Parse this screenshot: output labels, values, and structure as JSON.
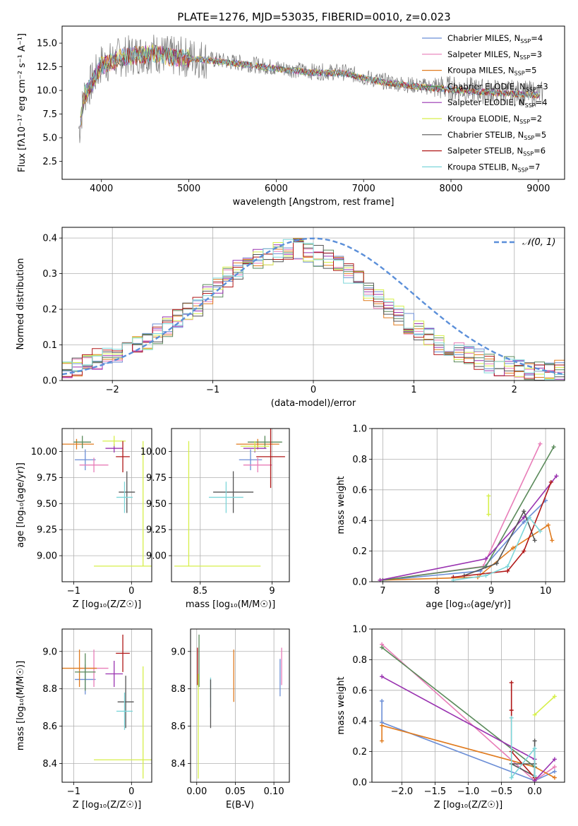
{
  "figure_title": "PLATE=1276, MJD=53035, FIBERID=0010, z=0.023",
  "colors": {
    "chabrier_miles": "#6b8ed6",
    "salpeter_miles": "#e87db8",
    "kroupa_miles": "#e07b1f",
    "chabrier_elodie": "#5a8a5a",
    "salpeter_elodie": "#9932b0",
    "kroupa_elodie": "#d6ef4a",
    "chabrier_stelib": "#555555",
    "salpeter_stelib": "#b01818",
    "kroupa_stelib": "#7dd6d9",
    "normal_curve": "#5b8fd9",
    "grid": "#b0b0b0"
  },
  "chart_data": [
    {
      "id": "spectrum",
      "type": "line",
      "xlabel": "wavelength [Angstrom, rest frame]",
      "ylabel": "Flux [fλ10⁻¹⁷ erg cm⁻² s⁻¹ A⁻¹]",
      "xlim": [
        3550,
        9300
      ],
      "ylim": [
        0.6,
        16.8
      ],
      "xticks": [
        4000,
        5000,
        6000,
        7000,
        8000,
        9000
      ],
      "yticks": [
        2.5,
        5.0,
        7.5,
        10.0,
        12.5,
        15.0
      ],
      "grid": false,
      "legend_position": "top-right",
      "legend": [
        {
          "label": "Chabrier MILES, N",
          "sub": "SSP",
          "suffix": "=4",
          "color": "#6b8ed6"
        },
        {
          "label": "Salpeter MILES, N",
          "sub": "SSP",
          "suffix": "=3",
          "color": "#e87db8"
        },
        {
          "label": "Kroupa MILES, N",
          "sub": "SSP",
          "suffix": "=5",
          "color": "#e07b1f"
        },
        {
          "label": "Chabrier ELODIE, N",
          "sub": "SSP",
          "suffix": "=3",
          "color": "#5a8a5a"
        },
        {
          "label": "Salpeter ELODIE, N",
          "sub": "SSP",
          "suffix": "=4",
          "color": "#9932b0"
        },
        {
          "label": "Kroupa ELODIE, N",
          "sub": "SSP",
          "suffix": "=2",
          "color": "#d6ef4a"
        },
        {
          "label": "Chabrier STELIB, N",
          "sub": "SSP",
          "suffix": "=5",
          "color": "#555555"
        },
        {
          "label": "Salpeter STELIB, N",
          "sub": "SSP",
          "suffix": "=6",
          "color": "#b01818"
        },
        {
          "label": "Kroupa STELIB, N",
          "sub": "SSP",
          "suffix": "=7",
          "color": "#7dd6d9"
        }
      ],
      "continuum": [
        [
          3750,
          6.0
        ],
        [
          3800,
          9.5
        ],
        [
          3900,
          11.0
        ],
        [
          4000,
          12.8
        ],
        [
          4100,
          13.0
        ],
        [
          4200,
          13.5
        ],
        [
          4400,
          13.8
        ],
        [
          4600,
          14.0
        ],
        [
          4800,
          13.6
        ],
        [
          5000,
          13.5
        ],
        [
          5200,
          13.3
        ],
        [
          5400,
          13.1
        ],
        [
          5600,
          12.9
        ],
        [
          6000,
          12.4
        ],
        [
          6400,
          12.0
        ],
        [
          6800,
          11.9
        ],
        [
          7000,
          11.4
        ],
        [
          7200,
          11.0
        ],
        [
          7600,
          10.5
        ],
        [
          8000,
          10.2
        ],
        [
          8400,
          9.9
        ],
        [
          8800,
          9.7
        ],
        [
          9050,
          9.6
        ]
      ]
    },
    {
      "id": "residuals",
      "type": "histogram",
      "xlabel": "(data-model)/error",
      "ylabel": "Normed distribution",
      "xlim": [
        -2.5,
        2.5
      ],
      "ylim": [
        0.0,
        0.43
      ],
      "xticks": [
        -2,
        -1,
        0,
        1,
        2
      ],
      "yticks": [
        0.0,
        0.1,
        0.2,
        0.3,
        0.4
      ],
      "grid": true,
      "bin_width": 0.1,
      "envelope": [
        0.03,
        0.04,
        0.05,
        0.06,
        0.07,
        0.08,
        0.09,
        0.1,
        0.11,
        0.13,
        0.15,
        0.17,
        0.19,
        0.21,
        0.24,
        0.26,
        0.29,
        0.31,
        0.33,
        0.34,
        0.35,
        0.36,
        0.37,
        0.37,
        0.36,
        0.35,
        0.34,
        0.32,
        0.3,
        0.28,
        0.25,
        0.23,
        0.2,
        0.18,
        0.16,
        0.14,
        0.12,
        0.1,
        0.09,
        0.08,
        0.07,
        0.06,
        0.05,
        0.04,
        0.04,
        0.03,
        0.03,
        0.03,
        0.03,
        0.03
      ],
      "legend": {
        "label": "𝒩(0, 1)",
        "position": "top-right"
      }
    },
    {
      "id": "age_vs_Z",
      "type": "errorbar",
      "xlabel": "Z [log₁₀(Z/Z☉)]",
      "ylabel": "age  [log₁₀(age/yr)]",
      "xlim": [
        -1.2,
        0.35
      ],
      "ylim": [
        8.75,
        10.22
      ],
      "xticks": [
        -1,
        0
      ],
      "yticks": [
        9.0,
        9.25,
        9.5,
        9.75,
        10.0
      ],
      "ytick_labels": [
        "9.00",
        "9.25",
        "9.50",
        "9.75",
        "10.00"
      ],
      "grid": true,
      "points": [
        {
          "x": -0.8,
          "y": 9.92,
          "xerr": 0.18,
          "yerr": 0.1,
          "color": "#6b8ed6"
        },
        {
          "x": -0.65,
          "y": 9.87,
          "xerr": 0.25,
          "yerr": 0.07,
          "color": "#e87db8"
        },
        {
          "x": -0.95,
          "y": 10.07,
          "xerr": 0.3,
          "yerr": 0.05,
          "color": "#e07b1f"
        },
        {
          "x": -0.85,
          "y": 10.09,
          "xerr": 0.15,
          "yerr": 0.06,
          "color": "#5a8a5a"
        },
        {
          "x": -0.3,
          "y": 10.03,
          "xerr": 0.15,
          "yerr": 0.04,
          "color": "#9932b0"
        },
        {
          "x": -0.3,
          "y": 10.1,
          "xerr": 0.2,
          "yerr": 0.05,
          "color": "#d6ef4a"
        },
        {
          "x": -0.08,
          "y": 9.61,
          "xerr": 0.14,
          "yerr": 0.2,
          "color": "#555555"
        },
        {
          "x": -0.15,
          "y": 9.95,
          "xerr": 0.12,
          "yerr": 0.15,
          "color": "#b01818"
        },
        {
          "x": -0.12,
          "y": 9.56,
          "xerr": 0.14,
          "yerr": 0.15,
          "color": "#7dd6d9"
        },
        {
          "x": -0.1,
          "y": 8.9,
          "xerr": 0.55,
          "yerr": 0.0,
          "color": "#d6ef4a"
        },
        {
          "x": 0.2,
          "y": 9.5,
          "xerr": 0.0,
          "yerr": 0.6,
          "color": "#d6ef4a"
        }
      ]
    },
    {
      "id": "age_vs_mass",
      "type": "errorbar",
      "xlabel": "mass [log₁₀(M/M☉)]",
      "ylabel": "",
      "xlim": [
        8.3,
        9.12
      ],
      "ylim": [
        8.75,
        10.22
      ],
      "xticks": [
        8.5,
        9.0
      ],
      "yticks": [
        9.0,
        9.25,
        9.5,
        9.75,
        10.0
      ],
      "ytick_labels": [
        "9.00",
        "9.25",
        "9.50",
        "9.75",
        "10.00"
      ],
      "grid": true,
      "points": [
        {
          "x": 8.85,
          "y": 9.92,
          "xerr": 0.08,
          "yerr": 0.1,
          "color": "#6b8ed6"
        },
        {
          "x": 8.9,
          "y": 9.87,
          "xerr": 0.1,
          "yerr": 0.07,
          "color": "#e87db8"
        },
        {
          "x": 8.9,
          "y": 10.07,
          "xerr": 0.15,
          "yerr": 0.05,
          "color": "#e07b1f"
        },
        {
          "x": 8.95,
          "y": 10.09,
          "xerr": 0.12,
          "yerr": 0.06,
          "color": "#5a8a5a"
        },
        {
          "x": 8.88,
          "y": 10.03,
          "xerr": 0.08,
          "yerr": 0.04,
          "color": "#9932b0"
        },
        {
          "x": 8.88,
          "y": 10.05,
          "xerr": 0.1,
          "yerr": 0.05,
          "color": "#d6ef4a"
        },
        {
          "x": 8.73,
          "y": 9.61,
          "xerr": 0.14,
          "yerr": 0.2,
          "color": "#555555"
        },
        {
          "x": 8.99,
          "y": 9.95,
          "xerr": 0.1,
          "yerr": 0.3,
          "color": "#b01818"
        },
        {
          "x": 8.68,
          "y": 9.56,
          "xerr": 0.12,
          "yerr": 0.15,
          "color": "#7dd6d9"
        },
        {
          "x": 8.62,
          "y": 8.9,
          "xerr": 0.3,
          "yerr": 0.0,
          "color": "#d6ef4a"
        },
        {
          "x": 8.42,
          "y": 9.5,
          "xerr": 0.0,
          "yerr": 0.6,
          "color": "#d6ef4a"
        }
      ]
    },
    {
      "id": "weight_vs_age",
      "type": "line",
      "xlabel": "age  [log₁₀(age/yr)]",
      "ylabel": "mass weight",
      "xlim": [
        6.8,
        10.35
      ],
      "ylim": [
        0.0,
        1.0
      ],
      "xticks": [
        7,
        8,
        9,
        10
      ],
      "yticks": [
        0.0,
        0.2,
        0.4,
        0.6,
        0.8,
        1.0
      ],
      "grid": true,
      "series": [
        {
          "color": "#6b8ed6",
          "points": [
            [
              7.0,
              0.01
            ],
            [
              8.8,
              0.07
            ],
            [
              9.6,
              0.39
            ],
            [
              10.0,
              0.53
            ]
          ]
        },
        {
          "color": "#e87db8",
          "points": [
            [
              7.0,
              0.01
            ],
            [
              8.85,
              0.1
            ],
            [
              9.9,
              0.9
            ]
          ]
        },
        {
          "color": "#e07b1f",
          "points": [
            [
              6.95,
              0.01
            ],
            [
              8.75,
              0.03
            ],
            [
              9.4,
              0.22
            ],
            [
              10.05,
              0.37
            ],
            [
              10.12,
              0.27
            ]
          ]
        },
        {
          "color": "#5a8a5a",
          "points": [
            [
              7.0,
              0.01
            ],
            [
              8.9,
              0.1
            ],
            [
              10.15,
              0.88
            ]
          ]
        },
        {
          "color": "#9932b0",
          "points": [
            [
              6.95,
              0.01
            ],
            [
              8.9,
              0.15
            ],
            [
              9.6,
              0.42
            ],
            [
              10.2,
              0.69
            ]
          ]
        },
        {
          "color": "#d6ef4a",
          "points": [
            [
              8.95,
              0.44
            ],
            [
              8.95,
              0.56
            ]
          ]
        },
        {
          "color": "#555555",
          "points": [
            [
              8.5,
              0.04
            ],
            [
              9.1,
              0.12
            ],
            [
              9.6,
              0.46
            ],
            [
              9.8,
              0.27
            ]
          ]
        },
        {
          "color": "#b01818",
          "points": [
            [
              8.3,
              0.03
            ],
            [
              9.3,
              0.07
            ],
            [
              9.6,
              0.2
            ],
            [
              10.1,
              0.65
            ]
          ]
        },
        {
          "color": "#7dd6d9",
          "points": [
            [
              8.3,
              0.01
            ],
            [
              8.9,
              0.04
            ],
            [
              9.3,
              0.1
            ],
            [
              9.7,
              0.42
            ],
            [
              9.9,
              0.33
            ]
          ]
        }
      ]
    },
    {
      "id": "mass_vs_Z",
      "type": "errorbar",
      "xlabel": "Z [log₁₀(Z/Z☉)]",
      "ylabel": "mass [log₁₀(M/M☉)]",
      "xlim": [
        -1.2,
        0.35
      ],
      "ylim": [
        8.3,
        9.12
      ],
      "xticks": [
        -1,
        0
      ],
      "yticks": [
        8.4,
        8.6,
        8.8,
        9.0
      ],
      "ytick_labels": [
        "8.4",
        "8.6",
        "8.8",
        "9.0"
      ],
      "grid": true,
      "points": [
        {
          "x": -0.8,
          "y": 8.85,
          "xerr": 0.18,
          "yerr": 0.08,
          "color": "#6b8ed6"
        },
        {
          "x": -0.65,
          "y": 8.91,
          "xerr": 0.25,
          "yerr": 0.1,
          "color": "#e87db8"
        },
        {
          "x": -0.9,
          "y": 8.91,
          "xerr": 0.3,
          "yerr": 0.1,
          "color": "#e07b1f"
        },
        {
          "x": -0.8,
          "y": 8.89,
          "xerr": 0.18,
          "yerr": 0.1,
          "color": "#5a8a5a"
        },
        {
          "x": -0.3,
          "y": 8.88,
          "xerr": 0.15,
          "yerr": 0.07,
          "color": "#9932b0"
        },
        {
          "x": -0.1,
          "y": 8.73,
          "xerr": 0.14,
          "yerr": 0.14,
          "color": "#555555"
        },
        {
          "x": -0.15,
          "y": 8.99,
          "xerr": 0.12,
          "yerr": 0.1,
          "color": "#b01818"
        },
        {
          "x": -0.12,
          "y": 8.68,
          "xerr": 0.14,
          "yerr": 0.1,
          "color": "#7dd6d9"
        },
        {
          "x": -0.1,
          "y": 8.42,
          "xerr": 0.55,
          "yerr": 0.0,
          "color": "#d6ef4a"
        },
        {
          "x": 0.2,
          "y": 8.62,
          "xerr": 0.0,
          "yerr": 0.3,
          "color": "#d6ef4a"
        }
      ]
    },
    {
      "id": "mass_vs_ebv",
      "type": "errorbar",
      "xlabel": "E(B-V)",
      "ylabel": "",
      "xlim": [
        -0.008,
        0.12
      ],
      "ylim": [
        8.3,
        9.12
      ],
      "xticks": [
        0.0,
        0.05,
        0.1
      ],
      "xtick_labels": [
        "0.00",
        "0.05",
        "0.10"
      ],
      "yticks": [
        8.4,
        8.6,
        8.8,
        9.0
      ],
      "ytick_labels": [
        "8.4",
        "8.6",
        "8.8",
        "9.0"
      ],
      "grid": true,
      "points": [
        {
          "x": 0.001,
          "y": 8.92,
          "xerr": 0,
          "yerr": 0.1,
          "color": "#b01818"
        },
        {
          "x": 0.003,
          "y": 8.95,
          "xerr": 0,
          "yerr": 0.14,
          "color": "#5a8a5a"
        },
        {
          "x": 0.002,
          "y": 8.6,
          "xerr": 0,
          "yerr": 0.28,
          "color": "#d6ef4a"
        },
        {
          "x": 0.018,
          "y": 8.78,
          "xerr": 0,
          "yerr": 0.08,
          "color": "#7dd6d9"
        },
        {
          "x": 0.018,
          "y": 8.72,
          "xerr": 0,
          "yerr": 0.13,
          "color": "#555555"
        },
        {
          "x": 0.048,
          "y": 8.87,
          "xerr": 0,
          "yerr": 0.14,
          "color": "#e07b1f"
        },
        {
          "x": 0.11,
          "y": 8.92,
          "xerr": 0,
          "yerr": 0.1,
          "color": "#e87db8"
        },
        {
          "x": 0.108,
          "y": 8.86,
          "xerr": 0,
          "yerr": 0.1,
          "color": "#6b8ed6"
        }
      ]
    },
    {
      "id": "weight_vs_Z",
      "type": "line",
      "xlabel": "Z [log₁₀(Z/Z☉)]",
      "ylabel": "mass weight",
      "xlim": [
        -2.45,
        0.45
      ],
      "ylim": [
        0.0,
        1.0
      ],
      "xticks": [
        -2.0,
        -1.5,
        -1.0,
        -0.5,
        0.0
      ],
      "xtick_labels": [
        "−2.0",
        "−1.5",
        "−1.0",
        "−0.5",
        "0.0"
      ],
      "yticks": [
        0.0,
        0.2,
        0.4,
        0.6,
        0.8,
        1.0
      ],
      "grid": true,
      "series": [
        {
          "color": "#6b8ed6",
          "points": [
            [
              -2.3,
              0.53
            ],
            [
              -2.3,
              0.39
            ],
            [
              0.0,
              0.01
            ],
            [
              0.3,
              0.07
            ]
          ]
        },
        {
          "color": "#e87db8",
          "points": [
            [
              -2.3,
              0.9
            ],
            [
              0.0,
              0.01
            ],
            [
              0.3,
              0.1
            ]
          ]
        },
        {
          "color": "#e07b1f",
          "points": [
            [
              -2.3,
              0.27
            ],
            [
              -2.3,
              0.37
            ],
            [
              0.0,
              0.1
            ],
            [
              0.3,
              0.03
            ]
          ]
        },
        {
          "color": "#5a8a5a",
          "points": [
            [
              -2.3,
              0.88
            ],
            [
              0.0,
              0.1
            ],
            [
              0.0,
              0.01
            ]
          ]
        },
        {
          "color": "#9932b0",
          "points": [
            [
              -2.3,
              0.69
            ],
            [
              0.0,
              0.15
            ],
            [
              0.0,
              0.01
            ],
            [
              0.3,
              0.15
            ]
          ]
        },
        {
          "color": "#d6ef4a",
          "points": [
            [
              0.0,
              0.44
            ],
            [
              0.3,
              0.56
            ]
          ]
        },
        {
          "color": "#555555",
          "points": [
            [
              0.0,
              0.27
            ],
            [
              0.0,
              0.04
            ],
            [
              -0.35,
              0.12
            ],
            [
              0.0,
              0.12
            ]
          ]
        },
        {
          "color": "#b01818",
          "points": [
            [
              -0.35,
              0.65
            ],
            [
              -0.35,
              0.47
            ],
            [
              -0.35,
              0.2
            ],
            [
              0.0,
              0.03
            ]
          ]
        },
        {
          "color": "#7dd6d9",
          "points": [
            [
              -0.35,
              0.42
            ],
            [
              -0.35,
              0.03
            ],
            [
              0.0,
              0.22
            ],
            [
              0.0,
              0.04
            ]
          ]
        }
      ]
    }
  ]
}
